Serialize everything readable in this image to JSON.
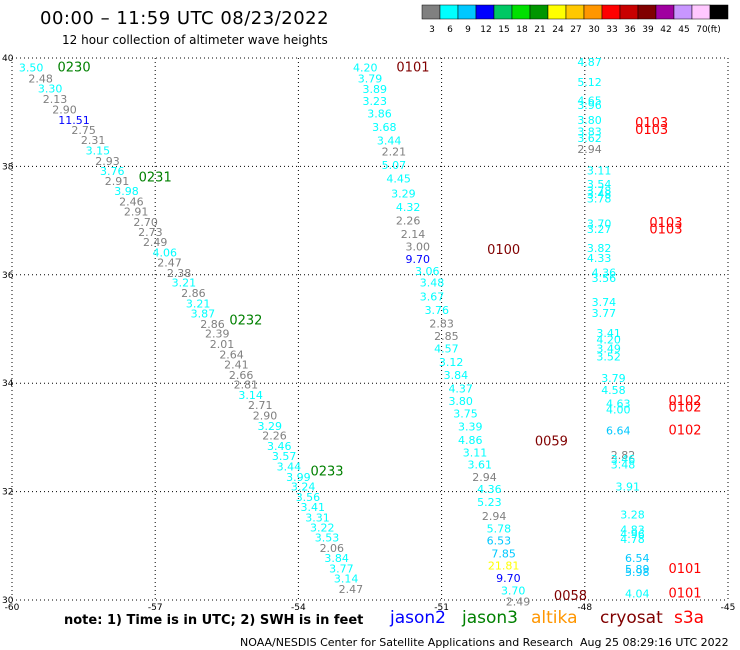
{
  "header": {
    "title": "00:00 – 11:59 UTC 08/23/2022",
    "subtitle": "12 hour collection of altimeter wave heights"
  },
  "colorbar": {
    "colors": [
      "#808080",
      "#00ffff",
      "#00c8ff",
      "#0000ff",
      "#00c864",
      "#00e000",
      "#009600",
      "#ffff00",
      "#ffc800",
      "#ff9600",
      "#ff0000",
      "#c80000",
      "#800000",
      "#a000a0",
      "#c896ff",
      "#ffc8ff",
      "#000000"
    ],
    "labels": [
      "3",
      "6",
      "9",
      "12",
      "15",
      "18",
      "21",
      "24",
      "27",
      "30",
      "33",
      "36",
      "39",
      "42",
      "45",
      "70"
    ],
    "unit": "(ft)"
  },
  "axes": {
    "x_ticks": [
      "-60",
      "-57",
      "-54",
      "-51",
      "-48",
      "-45"
    ],
    "y_ticks": [
      "40",
      "38",
      "36",
      "34",
      "32",
      "30"
    ],
    "lon_min": -60,
    "lon_max": -45,
    "lat_min": 30,
    "lat_max": 40
  },
  "tracks": [
    {
      "satellite": "jason3",
      "time": "0230",
      "time_color": "#008000",
      "time_lat": 39.75,
      "time_lon": -58.7
    },
    {
      "satellite": "jason3",
      "time": "0231",
      "time_color": "#008000",
      "time_lat": 37.72,
      "time_lon": -57.0
    },
    {
      "satellite": "jason3",
      "time": "0232",
      "time_color": "#008000",
      "time_lat": 35.08,
      "time_lon": -55.1
    },
    {
      "satellite": "jason3",
      "time": "0233",
      "time_color": "#008000",
      "time_lat": 32.3,
      "time_lon": -53.4
    },
    {
      "satellite": "cryosat",
      "time": "0101",
      "time_color": "#800000",
      "time_lat": 39.75,
      "time_lon": -51.6
    },
    {
      "satellite": "cryosat",
      "time": "0100",
      "time_color": "#800000",
      "time_lat": 36.38,
      "time_lon": -49.7
    },
    {
      "satellite": "cryosat",
      "time": "0059",
      "time_color": "#800000",
      "time_lat": 32.85,
      "time_lon": -48.7
    },
    {
      "satellite": "cryosat",
      "time": "0058",
      "time_color": "#800000",
      "time_lat": 30.0,
      "time_lon": -48.3
    },
    {
      "satellite": "s3a",
      "time": "0103",
      "time_color": "#ff0000",
      "time_lat": 38.73,
      "time_lon": -46.6
    },
    {
      "satellite": "s3a",
      "time": "0103",
      "time_color": "#ff0000",
      "time_lat": 38.6,
      "time_lon": -46.6
    },
    {
      "satellite": "s3a",
      "time": "0103",
      "time_color": "#ff0000",
      "time_lat": 36.88,
      "time_lon": -46.3
    },
    {
      "satellite": "s3a",
      "time": "0103",
      "time_color": "#ff0000",
      "time_lat": 36.76,
      "time_lon": -46.3
    },
    {
      "satellite": "s3a",
      "time": "0102",
      "time_color": "#ff0000",
      "time_lat": 33.6,
      "time_lon": -45.9
    },
    {
      "satellite": "s3a",
      "time": "0102",
      "time_color": "#ff0000",
      "time_lat": 33.48,
      "time_lon": -45.9
    },
    {
      "satellite": "s3a",
      "time": "0102",
      "time_color": "#ff0000",
      "time_lat": 33.05,
      "time_lon": -45.9
    },
    {
      "satellite": "s3a",
      "time": "0101",
      "time_color": "#ff0000",
      "time_lat": 30.5,
      "time_lon": -45.9
    },
    {
      "satellite": "s3a",
      "time": "0101",
      "time_color": "#ff0000",
      "time_lat": 30.05,
      "time_lon": -45.9
    }
  ],
  "observations": [
    {
      "v": "3.50",
      "lat": 39.75,
      "lon": -59.6,
      "c": "#00ffff"
    },
    {
      "v": "2.48",
      "lat": 39.55,
      "lon": -59.4,
      "c": "#808080"
    },
    {
      "v": "3.30",
      "lat": 39.36,
      "lon": -59.2,
      "c": "#00ffff"
    },
    {
      "v": "2.13",
      "lat": 39.17,
      "lon": -59.1,
      "c": "#808080"
    },
    {
      "v": "2.90",
      "lat": 38.98,
      "lon": -58.9,
      "c": "#808080"
    },
    {
      "v": "11.51",
      "lat": 38.78,
      "lon": -58.7,
      "c": "#0000ff"
    },
    {
      "v": "2.75",
      "lat": 38.6,
      "lon": -58.5,
      "c": "#808080"
    },
    {
      "v": "2.31",
      "lat": 38.41,
      "lon": -58.3,
      "c": "#808080"
    },
    {
      "v": "3.15",
      "lat": 38.22,
      "lon": -58.2,
      "c": "#00ffff"
    },
    {
      "v": "2.93",
      "lat": 38.03,
      "lon": -58.0,
      "c": "#808080"
    },
    {
      "v": "3.76",
      "lat": 37.84,
      "lon": -57.9,
      "c": "#00ffff"
    },
    {
      "v": "2.91",
      "lat": 37.66,
      "lon": -57.8,
      "c": "#808080"
    },
    {
      "v": "3.98",
      "lat": 37.47,
      "lon": -57.6,
      "c": "#00ffff"
    },
    {
      "v": "2.46",
      "lat": 37.28,
      "lon": -57.5,
      "c": "#808080"
    },
    {
      "v": "2.91",
      "lat": 37.09,
      "lon": -57.4,
      "c": "#808080"
    },
    {
      "v": "2.70",
      "lat": 36.9,
      "lon": -57.2,
      "c": "#808080"
    },
    {
      "v": "2.73",
      "lat": 36.72,
      "lon": -57.1,
      "c": "#808080"
    },
    {
      "v": "2.49",
      "lat": 36.53,
      "lon": -57.0,
      "c": "#808080"
    },
    {
      "v": "4.06",
      "lat": 36.34,
      "lon": -56.8,
      "c": "#00ffff"
    },
    {
      "v": "2.47",
      "lat": 36.15,
      "lon": -56.7,
      "c": "#808080"
    },
    {
      "v": "2.38",
      "lat": 35.96,
      "lon": -56.5,
      "c": "#808080"
    },
    {
      "v": "3.21",
      "lat": 35.78,
      "lon": -56.4,
      "c": "#00ffff"
    },
    {
      "v": "2.86",
      "lat": 35.59,
      "lon": -56.2,
      "c": "#808080"
    },
    {
      "v": "3.21",
      "lat": 35.4,
      "lon": -56.1,
      "c": "#00ffff"
    },
    {
      "v": "3.87",
      "lat": 35.21,
      "lon": -56.0,
      "c": "#00ffff"
    },
    {
      "v": "2.86",
      "lat": 35.02,
      "lon": -55.8,
      "c": "#808080"
    },
    {
      "v": "2.39",
      "lat": 34.84,
      "lon": -55.7,
      "c": "#808080"
    },
    {
      "v": "2.01",
      "lat": 34.65,
      "lon": -55.6,
      "c": "#808080"
    },
    {
      "v": "2.64",
      "lat": 34.46,
      "lon": -55.4,
      "c": "#808080"
    },
    {
      "v": "2.41",
      "lat": 34.27,
      "lon": -55.3,
      "c": "#808080"
    },
    {
      "v": "2.66",
      "lat": 34.08,
      "lon": -55.2,
      "c": "#808080"
    },
    {
      "v": "2.81",
      "lat": 33.9,
      "lon": -55.1,
      "c": "#808080"
    },
    {
      "v": "3.14",
      "lat": 33.71,
      "lon": -55.0,
      "c": "#00ffff"
    },
    {
      "v": "2.71",
      "lat": 33.52,
      "lon": -54.8,
      "c": "#808080"
    },
    {
      "v": "2.90",
      "lat": 33.33,
      "lon": -54.7,
      "c": "#808080"
    },
    {
      "v": "3.29",
      "lat": 33.14,
      "lon": -54.6,
      "c": "#00ffff"
    },
    {
      "v": "2.26",
      "lat": 32.96,
      "lon": -54.5,
      "c": "#808080"
    },
    {
      "v": "3.46",
      "lat": 32.77,
      "lon": -54.4,
      "c": "#00ffff"
    },
    {
      "v": "3.57",
      "lat": 32.58,
      "lon": -54.3,
      "c": "#00ffff"
    },
    {
      "v": "3.44",
      "lat": 32.39,
      "lon": -54.2,
      "c": "#00ffff"
    },
    {
      "v": "3.99",
      "lat": 32.2,
      "lon": -54.0,
      "c": "#00ffff"
    },
    {
      "v": "3.24",
      "lat": 32.02,
      "lon": -53.9,
      "c": "#00ffff"
    },
    {
      "v": "3.56",
      "lat": 31.83,
      "lon": -53.8,
      "c": "#00ffff"
    },
    {
      "v": "3.41",
      "lat": 31.64,
      "lon": -53.7,
      "c": "#00ffff"
    },
    {
      "v": "3.31",
      "lat": 31.45,
      "lon": -53.6,
      "c": "#00ffff"
    },
    {
      "v": "3.22",
      "lat": 31.26,
      "lon": -53.5,
      "c": "#00ffff"
    },
    {
      "v": "3.53",
      "lat": 31.08,
      "lon": -53.4,
      "c": "#00ffff"
    },
    {
      "v": "2.06",
      "lat": 30.89,
      "lon": -53.3,
      "c": "#808080"
    },
    {
      "v": "3.84",
      "lat": 30.7,
      "lon": -53.2,
      "c": "#00ffff"
    },
    {
      "v": "3.77",
      "lat": 30.51,
      "lon": -53.1,
      "c": "#00ffff"
    },
    {
      "v": "3.14",
      "lat": 30.32,
      "lon": -53.0,
      "c": "#00ffff"
    },
    {
      "v": "2.47",
      "lat": 30.13,
      "lon": -52.9,
      "c": "#808080"
    },
    {
      "v": "4.20",
      "lat": 39.75,
      "lon": -52.6,
      "c": "#00ffff"
    },
    {
      "v": "3.79",
      "lat": 39.55,
      "lon": -52.5,
      "c": "#00ffff"
    },
    {
      "v": "3.89",
      "lat": 39.35,
      "lon": -52.4,
      "c": "#00ffff"
    },
    {
      "v": "3.23",
      "lat": 39.13,
      "lon": -52.4,
      "c": "#00ffff"
    },
    {
      "v": "3.86",
      "lat": 38.9,
      "lon": -52.3,
      "c": "#00ffff"
    },
    {
      "v": "3.68",
      "lat": 38.65,
      "lon": -52.2,
      "c": "#00ffff"
    },
    {
      "v": "3.44",
      "lat": 38.4,
      "lon": -52.1,
      "c": "#00ffff"
    },
    {
      "v": "2.21",
      "lat": 38.2,
      "lon": -52.0,
      "c": "#808080"
    },
    {
      "v": "5.07",
      "lat": 37.95,
      "lon": -52.0,
      "c": "#00ffff"
    },
    {
      "v": "4.45",
      "lat": 37.7,
      "lon": -51.9,
      "c": "#00ffff"
    },
    {
      "v": "3.29",
      "lat": 37.43,
      "lon": -51.8,
      "c": "#00ffff"
    },
    {
      "v": "4.32",
      "lat": 37.18,
      "lon": -51.7,
      "c": "#00ffff"
    },
    {
      "v": "2.26",
      "lat": 36.93,
      "lon": -51.7,
      "c": "#808080"
    },
    {
      "v": "2.14",
      "lat": 36.68,
      "lon": -51.6,
      "c": "#808080"
    },
    {
      "v": "3.00",
      "lat": 36.45,
      "lon": -51.5,
      "c": "#808080"
    },
    {
      "v": "9.70",
      "lat": 36.22,
      "lon": -51.5,
      "c": "#0000ff"
    },
    {
      "v": "3.06",
      "lat": 36.0,
      "lon": -51.3,
      "c": "#00ffff"
    },
    {
      "v": "3.48",
      "lat": 35.78,
      "lon": -51.2,
      "c": "#00ffff"
    },
    {
      "v": "3.67",
      "lat": 35.53,
      "lon": -51.2,
      "c": "#00ffff"
    },
    {
      "v": "3.76",
      "lat": 35.28,
      "lon": -51.1,
      "c": "#00ffff"
    },
    {
      "v": "2.83",
      "lat": 35.03,
      "lon": -51.0,
      "c": "#808080"
    },
    {
      "v": "2.85",
      "lat": 34.8,
      "lon": -50.9,
      "c": "#808080"
    },
    {
      "v": "4.57",
      "lat": 34.57,
      "lon": -50.9,
      "c": "#00ffff"
    },
    {
      "v": "3.12",
      "lat": 34.32,
      "lon": -50.8,
      "c": "#00ffff"
    },
    {
      "v": "3.84",
      "lat": 34.08,
      "lon": -50.7,
      "c": "#00ffff"
    },
    {
      "v": "4.37",
      "lat": 33.83,
      "lon": -50.6,
      "c": "#00ffff"
    },
    {
      "v": "3.80",
      "lat": 33.6,
      "lon": -50.6,
      "c": "#00ffff"
    },
    {
      "v": "3.75",
      "lat": 33.37,
      "lon": -50.5,
      "c": "#00ffff"
    },
    {
      "v": "3.39",
      "lat": 33.13,
      "lon": -50.4,
      "c": "#00ffff"
    },
    {
      "v": "4.86",
      "lat": 32.88,
      "lon": -50.4,
      "c": "#00ffff"
    },
    {
      "v": "3.11",
      "lat": 32.65,
      "lon": -50.3,
      "c": "#00ffff"
    },
    {
      "v": "3.61",
      "lat": 32.43,
      "lon": -50.2,
      "c": "#00ffff"
    },
    {
      "v": "2.94",
      "lat": 32.2,
      "lon": -50.1,
      "c": "#808080"
    },
    {
      "v": "4.36",
      "lat": 31.97,
      "lon": -50.0,
      "c": "#00ffff"
    },
    {
      "v": "5.23",
      "lat": 31.73,
      "lon": -50.0,
      "c": "#00ffff"
    },
    {
      "v": "2.94",
      "lat": 31.48,
      "lon": -49.9,
      "c": "#808080"
    },
    {
      "v": "5.78",
      "lat": 31.25,
      "lon": -49.8,
      "c": "#00ffff"
    },
    {
      "v": "6.53",
      "lat": 31.02,
      "lon": -49.8,
      "c": "#00c8ff"
    },
    {
      "v": "7.85",
      "lat": 30.78,
      "lon": -49.7,
      "c": "#00c8ff"
    },
    {
      "v": "21.81",
      "lat": 30.56,
      "lon": -49.7,
      "c": "#ffff00"
    },
    {
      "v": "9.70",
      "lat": 30.33,
      "lon": -49.6,
      "c": "#0000ff"
    },
    {
      "v": "3.70",
      "lat": 30.1,
      "lon": -49.5,
      "c": "#00ffff"
    },
    {
      "v": "2.49",
      "lat": 29.9,
      "lon": -49.4,
      "c": "#808080"
    },
    {
      "v": "4.87",
      "lat": 39.85,
      "lon": -47.9,
      "c": "#00ffff"
    },
    {
      "v": "5.12",
      "lat": 39.48,
      "lon": -47.9,
      "c": "#00ffff"
    },
    {
      "v": "4.65",
      "lat": 39.14,
      "lon": -47.9,
      "c": "#00ffff"
    },
    {
      "v": "3.96",
      "lat": 39.06,
      "lon": -47.9,
      "c": "#00ffff"
    },
    {
      "v": "3.80",
      "lat": 38.78,
      "lon": -47.9,
      "c": "#00ffff"
    },
    {
      "v": "3.83",
      "lat": 38.57,
      "lon": -47.9,
      "c": "#00ffff"
    },
    {
      "v": "3.62",
      "lat": 38.45,
      "lon": -47.9,
      "c": "#00ffff"
    },
    {
      "v": "2.94",
      "lat": 38.25,
      "lon": -47.9,
      "c": "#808080"
    },
    {
      "v": "3.11",
      "lat": 37.85,
      "lon": -47.7,
      "c": "#00ffff"
    },
    {
      "v": "3.54",
      "lat": 37.6,
      "lon": -47.7,
      "c": "#00ffff"
    },
    {
      "v": "3.78",
      "lat": 37.48,
      "lon": -47.7,
      "c": "#00ffff"
    },
    {
      "v": "3.48",
      "lat": 37.42,
      "lon": -47.7,
      "c": "#00ffff"
    },
    {
      "v": "3.78",
      "lat": 37.33,
      "lon": -47.7,
      "c": "#00ffff"
    },
    {
      "v": "3.70",
      "lat": 36.87,
      "lon": -47.7,
      "c": "#00ffff"
    },
    {
      "v": "3.27",
      "lat": 36.77,
      "lon": -47.7,
      "c": "#00ffff"
    },
    {
      "v": "3.82",
      "lat": 36.42,
      "lon": -47.7,
      "c": "#00ffff"
    },
    {
      "v": "4.33",
      "lat": 36.24,
      "lon": -47.7,
      "c": "#00ffff"
    },
    {
      "v": "4.36",
      "lat": 35.97,
      "lon": -47.6,
      "c": "#00ffff"
    },
    {
      "v": "3.56",
      "lat": 35.87,
      "lon": -47.6,
      "c": "#00ffff"
    },
    {
      "v": "3.74",
      "lat": 35.42,
      "lon": -47.6,
      "c": "#00ffff"
    },
    {
      "v": "3.77",
      "lat": 35.22,
      "lon": -47.6,
      "c": "#00ffff"
    },
    {
      "v": "3.41",
      "lat": 34.85,
      "lon": -47.5,
      "c": "#00ffff"
    },
    {
      "v": "4.20",
      "lat": 34.73,
      "lon": -47.5,
      "c": "#00ffff"
    },
    {
      "v": "3.49",
      "lat": 34.57,
      "lon": -47.5,
      "c": "#00ffff"
    },
    {
      "v": "3.52",
      "lat": 34.42,
      "lon": -47.5,
      "c": "#00ffff"
    },
    {
      "v": "3.79",
      "lat": 34.02,
      "lon": -47.4,
      "c": "#00ffff"
    },
    {
      "v": "4.58",
      "lat": 33.8,
      "lon": -47.4,
      "c": "#00ffff"
    },
    {
      "v": "4.63",
      "lat": 33.55,
      "lon": -47.3,
      "c": "#00ffff"
    },
    {
      "v": "4.00",
      "lat": 33.44,
      "lon": -47.3,
      "c": "#00ffff"
    },
    {
      "v": "6.64",
      "lat": 33.05,
      "lon": -47.3,
      "c": "#00c8ff"
    },
    {
      "v": "2.82",
      "lat": 32.6,
      "lon": -47.2,
      "c": "#808080"
    },
    {
      "v": "3.46",
      "lat": 32.53,
      "lon": -47.2,
      "c": "#00ffff"
    },
    {
      "v": "3.48",
      "lat": 32.43,
      "lon": -47.2,
      "c": "#00ffff"
    },
    {
      "v": "3.91",
      "lat": 32.02,
      "lon": -47.1,
      "c": "#00ffff"
    },
    {
      "v": "3.28",
      "lat": 31.5,
      "lon": -47.0,
      "c": "#00ffff"
    },
    {
      "v": "4.83",
      "lat": 31.23,
      "lon": -47.0,
      "c": "#00ffff"
    },
    {
      "v": "4.96",
      "lat": 31.14,
      "lon": -47.0,
      "c": "#00ffff"
    },
    {
      "v": "4.78",
      "lat": 31.05,
      "lon": -47.0,
      "c": "#00ffff"
    },
    {
      "v": "6.54",
      "lat": 30.7,
      "lon": -46.9,
      "c": "#00c8ff"
    },
    {
      "v": "5.89",
      "lat": 30.5,
      "lon": -46.9,
      "c": "#00c8ff"
    },
    {
      "v": "5.98",
      "lat": 30.44,
      "lon": -46.9,
      "c": "#00c8ff"
    },
    {
      "v": "4.04",
      "lat": 30.05,
      "lon": -46.9,
      "c": "#00ffff"
    }
  ],
  "legend": {
    "note": "note:  1) Time is in UTC;  2) SWH is in feet",
    "satellites": [
      {
        "name": "jason2",
        "color": "#0000ff"
      },
      {
        "name": "jason3",
        "color": "#008000"
      },
      {
        "name": "altika",
        "color": "#ff9600"
      },
      {
        "name": "cryosat",
        "color": "#800000"
      },
      {
        "name": "s3a",
        "color": "#ff0000"
      }
    ]
  },
  "footer": {
    "credit": "NOAA/NESDIS Center for Satellite Applications and Research",
    "timestamp": "Aug 25 08:29:16 UTC 2022"
  }
}
